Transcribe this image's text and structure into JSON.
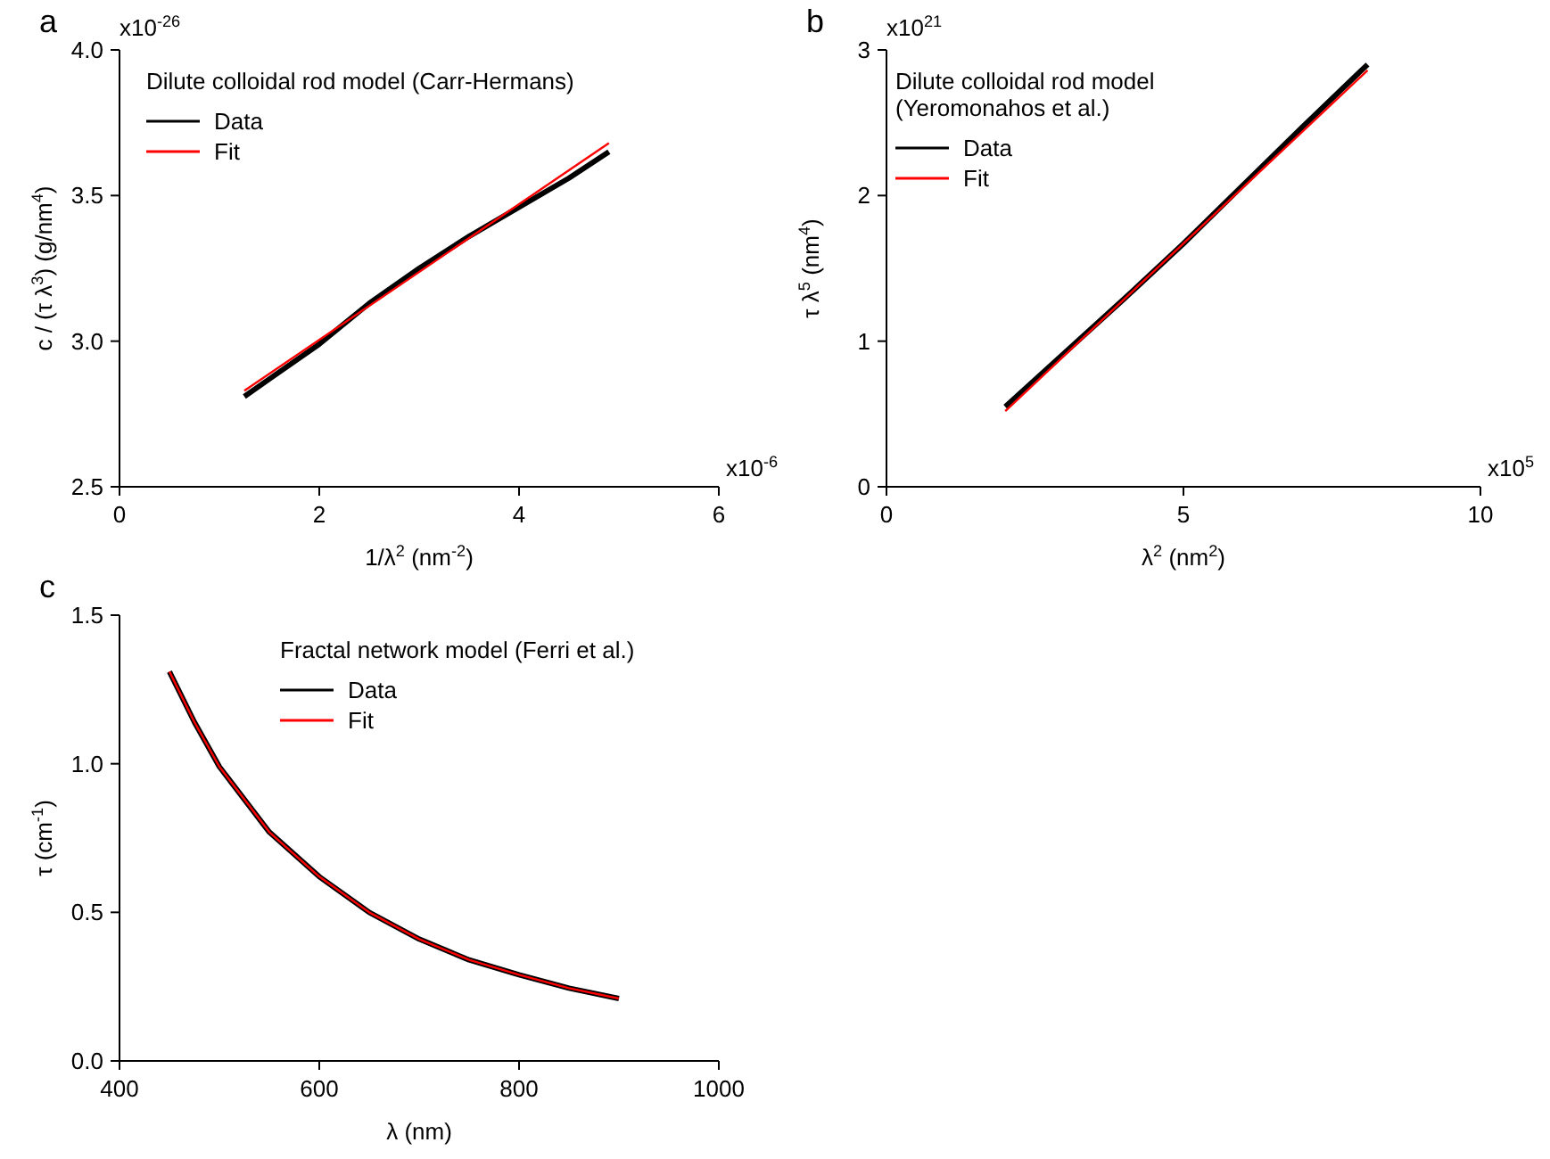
{
  "chart_data": [
    {
      "type": "line",
      "title": "a",
      "legend_title": "Dilute colloidal rod model (Carr-Hermans)",
      "xlabel": "1/λ$^{2}$ (nm$^{-2}$)",
      "ylabel": "c / (τ λ$^{3}$) (g/nm$^{4}$)",
      "annotations": [
        "x10$^{-26}$",
        "x10$^{-6}$"
      ],
      "xlim": [
        0,
        6
      ],
      "xticks": [
        0,
        2,
        4,
        6
      ],
      "ylim": [
        2.5,
        4.0
      ],
      "yticks": [
        2.5,
        {
          "value": 3.0,
          "label": "3.0"
        },
        3.5,
        {
          "value": 4.0,
          "label": "4.0"
        }
      ],
      "legend": "top left",
      "series": [
        {
          "name": "Data",
          "color": "#000000",
          "x": [
            1.25,
            1.5,
            2,
            2.5,
            3,
            3.5,
            4,
            4.5,
            4.9
          ],
          "values": [
            2.81,
            2.87,
            2.99,
            3.13,
            3.25,
            3.36,
            3.46,
            3.56,
            3.65
          ]
        },
        {
          "name": "Fit",
          "color": "#ff0000",
          "x": [
            1.25,
            4.9
          ],
          "values": [
            2.83,
            3.68
          ]
        }
      ]
    },
    {
      "type": "line",
      "title": "b",
      "legend_title": "Dilute colloidal rod model (Yeromonahos et al.)",
      "xlabel": "λ$^{2}$ (nm$^{2}$)",
      "ylabel": "τ λ$^{5}$ (nm$^{4}$)",
      "annotations": [
        "x10$^{21}$",
        "x10$^{5}$"
      ],
      "xlim": [
        0,
        10
      ],
      "xticks": [
        0,
        5,
        10
      ],
      "ylim": [
        0,
        3
      ],
      "yticks": [
        0,
        1,
        2,
        3
      ],
      "legend": "top left",
      "series": [
        {
          "name": "Data",
          "color": "#000000",
          "x": [
            2,
            3,
            4,
            5,
            6,
            7,
            8.1
          ],
          "values": [
            0.55,
            0.92,
            1.29,
            1.67,
            2.07,
            2.47,
            2.9
          ]
        },
        {
          "name": "Fit",
          "color": "#ff0000",
          "x": [
            2,
            8.1
          ],
          "values": [
            0.52,
            2.86
          ]
        }
      ]
    },
    {
      "type": "line",
      "title": "c",
      "legend_title": "Fractal network model (Ferri et al.)",
      "xlabel": "λ (nm)",
      "ylabel": "τ (cm$^{-1}$)",
      "xlim": [
        400,
        1000
      ],
      "xticks": [
        400,
        600,
        800,
        1000
      ],
      "ylim": [
        0,
        1.5
      ],
      "yticks": [
        {
          "value": 0,
          "label": "0.0"
        },
        0.5,
        {
          "value": 1.0,
          "label": "1.0"
        },
        1.5
      ],
      "legend": "top",
      "series": [
        {
          "name": "Data",
          "color": "#000000",
          "x": [
            450,
            475,
            500,
            550,
            600,
            650,
            700,
            750,
            800,
            850,
            900
          ],
          "values": [
            1.31,
            1.14,
            0.99,
            0.77,
            0.62,
            0.5,
            0.41,
            0.34,
            0.29,
            0.245,
            0.21
          ]
        },
        {
          "name": "Fit",
          "color": "#ff0000",
          "x": [
            450,
            475,
            500,
            550,
            600,
            650,
            700,
            750,
            800,
            850,
            900
          ],
          "values": [
            1.31,
            1.14,
            0.99,
            0.77,
            0.62,
            0.5,
            0.41,
            0.34,
            0.29,
            0.245,
            0.21
          ]
        }
      ]
    }
  ]
}
